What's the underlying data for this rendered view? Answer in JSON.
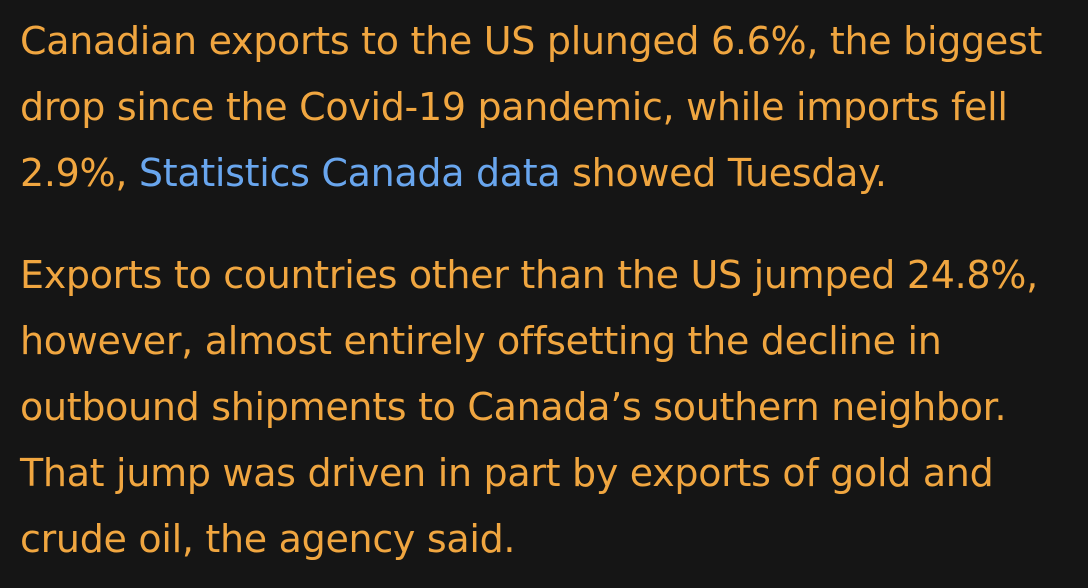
{
  "article": {
    "paragraph_1": {
      "line_1": "Canadian exports to the US plunged 6.6%, the biggest",
      "line_2": "drop since the Covid-19 pandemic, while imports fell",
      "line_3_before_link": "2.9%, ",
      "link_text": "Statistics Canada data",
      "line_3_after_link": " showed Tuesday."
    },
    "paragraph_2": {
      "line_1": "Exports to countries other than the US jumped 24.8%,",
      "line_2": "however, almost entirely offsetting the decline in",
      "line_3": "outbound shipments to Canada’s southern neighbor.",
      "line_4": "That jump was driven in part by exports of gold and",
      "line_5": "crude oil, the agency said."
    }
  },
  "colors": {
    "background": "#151515",
    "body_text": "#f0a640",
    "link": "#69a6ee"
  }
}
